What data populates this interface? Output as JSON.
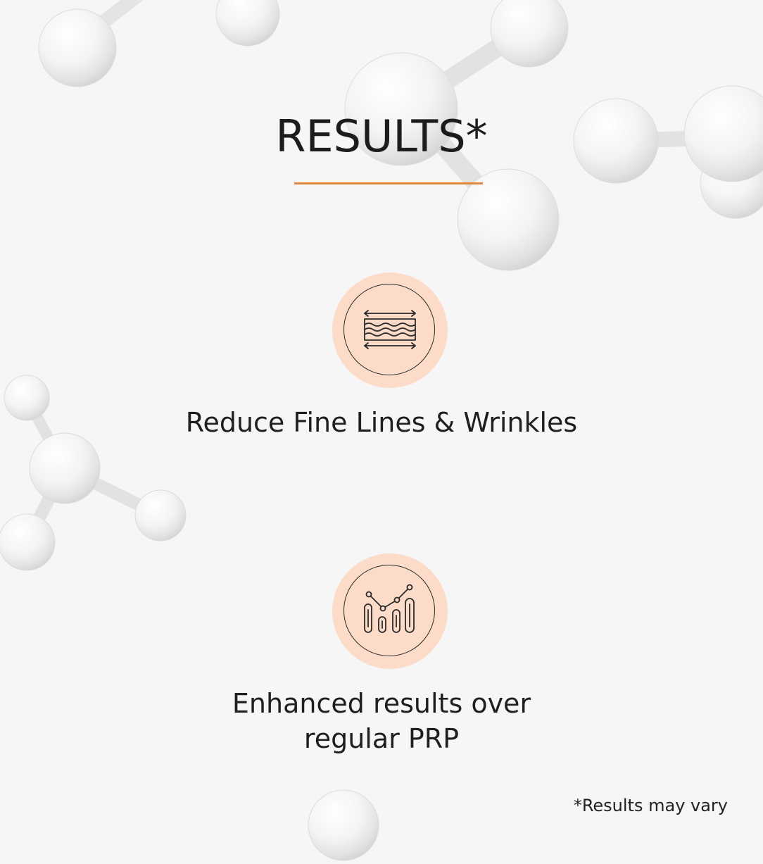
{
  "section": {
    "title": "RESULTS*",
    "accent_color": "#e28a3c",
    "badge_color": "#fcdcc8"
  },
  "benefits": [
    {
      "icon": "wrinkle-lines-icon",
      "label": "Reduce Fine Lines & Wrinkles"
    },
    {
      "icon": "growth-chart-icon",
      "label_line1": "Enhanced results over",
      "label_line2": "regular PRP"
    }
  ],
  "disclaimer": "*Results may vary"
}
